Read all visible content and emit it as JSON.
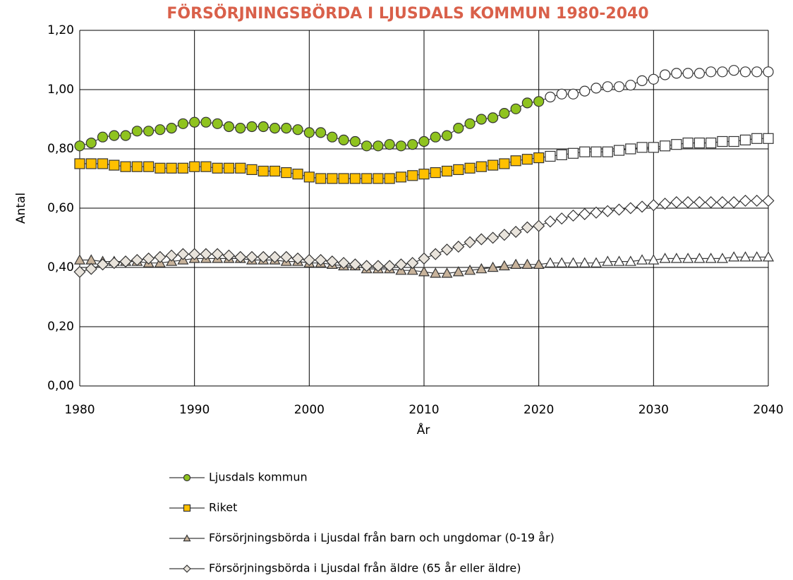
{
  "chart_data": {
    "type": "line",
    "title": "FÖRSÖRJNINGSBÖRDA I LJUSDALS KOMMUN 1980-2040",
    "x_label": "År",
    "y_label": "Antal",
    "x": [
      1980,
      1981,
      1982,
      1983,
      1984,
      1985,
      1986,
      1987,
      1988,
      1989,
      1990,
      1991,
      1992,
      1993,
      1994,
      1995,
      1996,
      1997,
      1998,
      1999,
      2000,
      2001,
      2002,
      2003,
      2004,
      2005,
      2006,
      2007,
      2008,
      2009,
      2010,
      2011,
      2012,
      2013,
      2014,
      2015,
      2016,
      2017,
      2018,
      2019,
      2020,
      2021,
      2022,
      2023,
      2024,
      2025,
      2026,
      2027,
      2028,
      2029,
      2030,
      2031,
      2032,
      2033,
      2034,
      2035,
      2036,
      2037,
      2038,
      2039,
      2040
    ],
    "xlim": [
      1980,
      2040
    ],
    "xticks": [
      1980,
      1990,
      2000,
      2010,
      2020,
      2030,
      2040
    ],
    "ylim": [
      0,
      1.2
    ],
    "yticks": [
      {
        "value": 0,
        "label": "0,00"
      },
      {
        "value": 0.2,
        "label": "0,20"
      },
      {
        "value": 0.4,
        "label": "0,40"
      },
      {
        "value": 0.6,
        "label": "0,60"
      },
      {
        "value": 0.8,
        "label": "0,80"
      },
      {
        "value": 1.0,
        "label": "1,00"
      },
      {
        "value": 1.2,
        "label": "1,20"
      }
    ],
    "grid": true,
    "line_color": "#3a3a3a",
    "forecast_from": 2021,
    "forecast_fill": "#ffffff",
    "series": [
      {
        "name": "Ljusdals kommun",
        "color": "#8fc31f",
        "marker": "circle",
        "values": [
          0.81,
          0.82,
          0.84,
          0.845,
          0.845,
          0.86,
          0.86,
          0.865,
          0.87,
          0.885,
          0.89,
          0.89,
          0.885,
          0.875,
          0.87,
          0.875,
          0.875,
          0.87,
          0.87,
          0.865,
          0.855,
          0.855,
          0.84,
          0.83,
          0.825,
          0.81,
          0.81,
          0.815,
          0.81,
          0.815,
          0.825,
          0.84,
          0.845,
          0.87,
          0.885,
          0.9,
          0.905,
          0.92,
          0.935,
          0.955,
          0.96,
          0.975,
          0.985,
          0.985,
          0.995,
          1.005,
          1.01,
          1.01,
          1.015,
          1.03,
          1.035,
          1.05,
          1.055,
          1.055,
          1.055,
          1.06,
          1.06,
          1.065,
          1.06,
          1.06,
          1.06
        ]
      },
      {
        "name": "Riket",
        "color": "#ffc000",
        "marker": "square",
        "values": [
          0.75,
          0.75,
          0.75,
          0.745,
          0.74,
          0.74,
          0.74,
          0.735,
          0.735,
          0.735,
          0.74,
          0.74,
          0.735,
          0.735,
          0.735,
          0.73,
          0.725,
          0.725,
          0.72,
          0.715,
          0.705,
          0.7,
          0.7,
          0.7,
          0.7,
          0.7,
          0.7,
          0.7,
          0.705,
          0.71,
          0.715,
          0.72,
          0.725,
          0.73,
          0.735,
          0.74,
          0.745,
          0.75,
          0.76,
          0.765,
          0.77,
          0.775,
          0.78,
          0.785,
          0.79,
          0.79,
          0.79,
          0.795,
          0.8,
          0.805,
          0.805,
          0.81,
          0.815,
          0.82,
          0.82,
          0.82,
          0.825,
          0.825,
          0.83,
          0.835,
          0.835
        ]
      },
      {
        "name": "Försörjningsbörda i Ljusdal från barn och ungdomar (0-19 år)",
        "color": "#c8b39b",
        "marker": "triangle",
        "values": [
          0.425,
          0.425,
          0.42,
          0.42,
          0.42,
          0.42,
          0.415,
          0.415,
          0.42,
          0.425,
          0.43,
          0.43,
          0.43,
          0.43,
          0.43,
          0.425,
          0.425,
          0.425,
          0.42,
          0.42,
          0.415,
          0.415,
          0.41,
          0.405,
          0.405,
          0.395,
          0.395,
          0.395,
          0.39,
          0.39,
          0.385,
          0.38,
          0.38,
          0.385,
          0.39,
          0.395,
          0.4,
          0.405,
          0.41,
          0.41,
          0.41,
          0.415,
          0.415,
          0.415,
          0.415,
          0.415,
          0.42,
          0.42,
          0.42,
          0.425,
          0.425,
          0.43,
          0.43,
          0.43,
          0.43,
          0.43,
          0.43,
          0.435,
          0.435,
          0.435,
          0.435
        ]
      },
      {
        "name": "Försörjningsbörda i Ljusdal från äldre (65 år eller äldre)",
        "color": "#e9e4dc",
        "marker": "diamond",
        "values": [
          0.385,
          0.395,
          0.41,
          0.415,
          0.42,
          0.425,
          0.43,
          0.435,
          0.44,
          0.445,
          0.445,
          0.445,
          0.445,
          0.44,
          0.435,
          0.435,
          0.435,
          0.435,
          0.435,
          0.43,
          0.425,
          0.425,
          0.42,
          0.415,
          0.41,
          0.405,
          0.405,
          0.405,
          0.41,
          0.415,
          0.43,
          0.445,
          0.46,
          0.47,
          0.485,
          0.495,
          0.5,
          0.51,
          0.52,
          0.535,
          0.54,
          0.555,
          0.565,
          0.575,
          0.58,
          0.585,
          0.59,
          0.595,
          0.6,
          0.605,
          0.61,
          0.615,
          0.62,
          0.62,
          0.62,
          0.62,
          0.62,
          0.62,
          0.625,
          0.625,
          0.625
        ]
      }
    ]
  }
}
